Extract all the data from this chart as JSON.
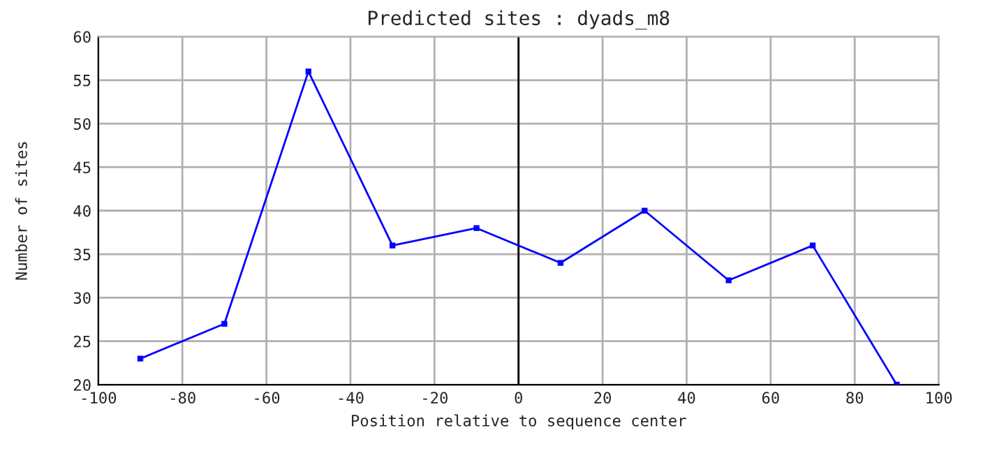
{
  "chart_data": {
    "type": "line",
    "title": "Predicted sites : dyads_m8",
    "xlabel": "Position relative to sequence center",
    "ylabel": "Number of sites",
    "x": [
      -90,
      -70,
      -50,
      -30,
      -10,
      10,
      30,
      50,
      70,
      90
    ],
    "series": [
      {
        "color": "#0000ff",
        "values": [
          23,
          27,
          56,
          36,
          38,
          34,
          40,
          32,
          36,
          20
        ]
      }
    ],
    "xlim": [
      -100,
      100
    ],
    "xticks": [
      -100,
      -80,
      -60,
      -40,
      -20,
      0,
      20,
      40,
      60,
      80,
      100
    ],
    "ylim": [
      20,
      60
    ],
    "yticks": [
      20,
      25,
      30,
      35,
      40,
      45,
      50,
      55,
      60
    ],
    "ref_lines": [
      {
        "axis": "x",
        "value": 0,
        "color": "#000000"
      }
    ],
    "grid": true,
    "marker": "square",
    "line_style": "solid"
  }
}
